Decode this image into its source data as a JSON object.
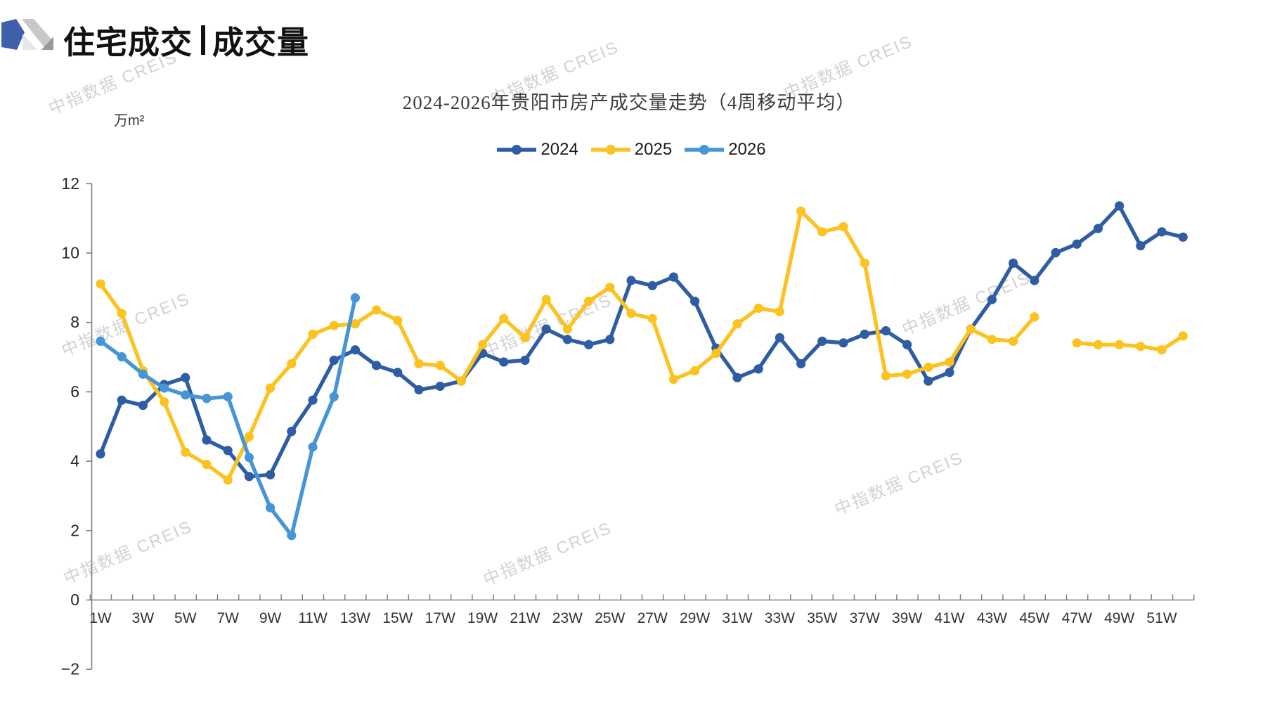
{
  "header": {
    "title_primary": "住宅成交",
    "title_secondary": "成交量"
  },
  "chart": {
    "title": "2024-2026年贵阳市房产成交量走势（4周移动平均）",
    "unit_label": "万m²",
    "watermark_text": "中指数据 CREIS"
  },
  "chart_data": {
    "type": "line",
    "title": "2024-2026年贵阳市房产成交量走势（4周移动平均）",
    "xlabel": "",
    "ylabel": "万m²",
    "ylim": [
      -2,
      12
    ],
    "ytick_interval": 2,
    "grid": false,
    "legend_position": "top-center",
    "x_categories": [
      "1W",
      "2W",
      "3W",
      "4W",
      "5W",
      "6W",
      "7W",
      "8W",
      "9W",
      "10W",
      "11W",
      "12W",
      "13W",
      "14W",
      "15W",
      "16W",
      "17W",
      "18W",
      "19W",
      "20W",
      "21W",
      "22W",
      "23W",
      "24W",
      "25W",
      "26W",
      "27W",
      "28W",
      "29W",
      "30W",
      "31W",
      "32W",
      "33W",
      "34W",
      "35W",
      "36W",
      "37W",
      "38W",
      "39W",
      "40W",
      "41W",
      "42W",
      "43W",
      "44W",
      "45W",
      "46W",
      "47W",
      "48W",
      "49W",
      "50W",
      "51W",
      "52W"
    ],
    "x_labels_shown_every": 2,
    "series": [
      {
        "name": "2024",
        "color": "#2F5DA4",
        "values": [
          4.2,
          5.75,
          5.6,
          6.2,
          6.4,
          4.6,
          4.3,
          3.55,
          3.6,
          4.85,
          5.75,
          6.9,
          7.2,
          6.75,
          6.55,
          6.05,
          6.15,
          6.3,
          7.1,
          6.85,
          6.9,
          7.8,
          7.5,
          7.35,
          7.5,
          9.2,
          9.05,
          9.3,
          8.6,
          7.25,
          6.4,
          6.65,
          7.55,
          6.8,
          7.45,
          7.4,
          7.65,
          7.75,
          7.35,
          6.3,
          6.55,
          7.8,
          8.65,
          9.7,
          9.2,
          10.0,
          10.25,
          10.7,
          11.35,
          10.2,
          10.6,
          10.45
        ]
      },
      {
        "name": "2025",
        "color": "#FCC21F",
        "values": [
          9.1,
          8.25,
          6.6,
          5.7,
          4.25,
          3.9,
          3.45,
          4.7,
          6.1,
          6.8,
          7.65,
          7.9,
          7.95,
          8.35,
          8.05,
          6.8,
          6.75,
          6.3,
          7.35,
          8.1,
          7.55,
          8.65,
          7.8,
          8.6,
          9.0,
          8.25,
          8.1,
          6.35,
          6.6,
          7.1,
          7.95,
          8.4,
          8.3,
          11.2,
          10.6,
          10.75,
          9.7,
          6.45,
          6.5,
          6.7,
          6.85,
          7.8,
          7.5,
          7.45,
          8.15,
          null,
          7.4,
          7.35,
          7.35,
          7.3,
          7.2,
          7.6
        ]
      },
      {
        "name": "2026",
        "color": "#4695D6",
        "values": [
          7.45,
          7.0,
          6.5,
          6.1,
          5.9,
          5.8,
          5.85,
          4.1,
          2.65,
          1.85,
          4.4,
          5.85,
          8.7
        ]
      }
    ]
  }
}
